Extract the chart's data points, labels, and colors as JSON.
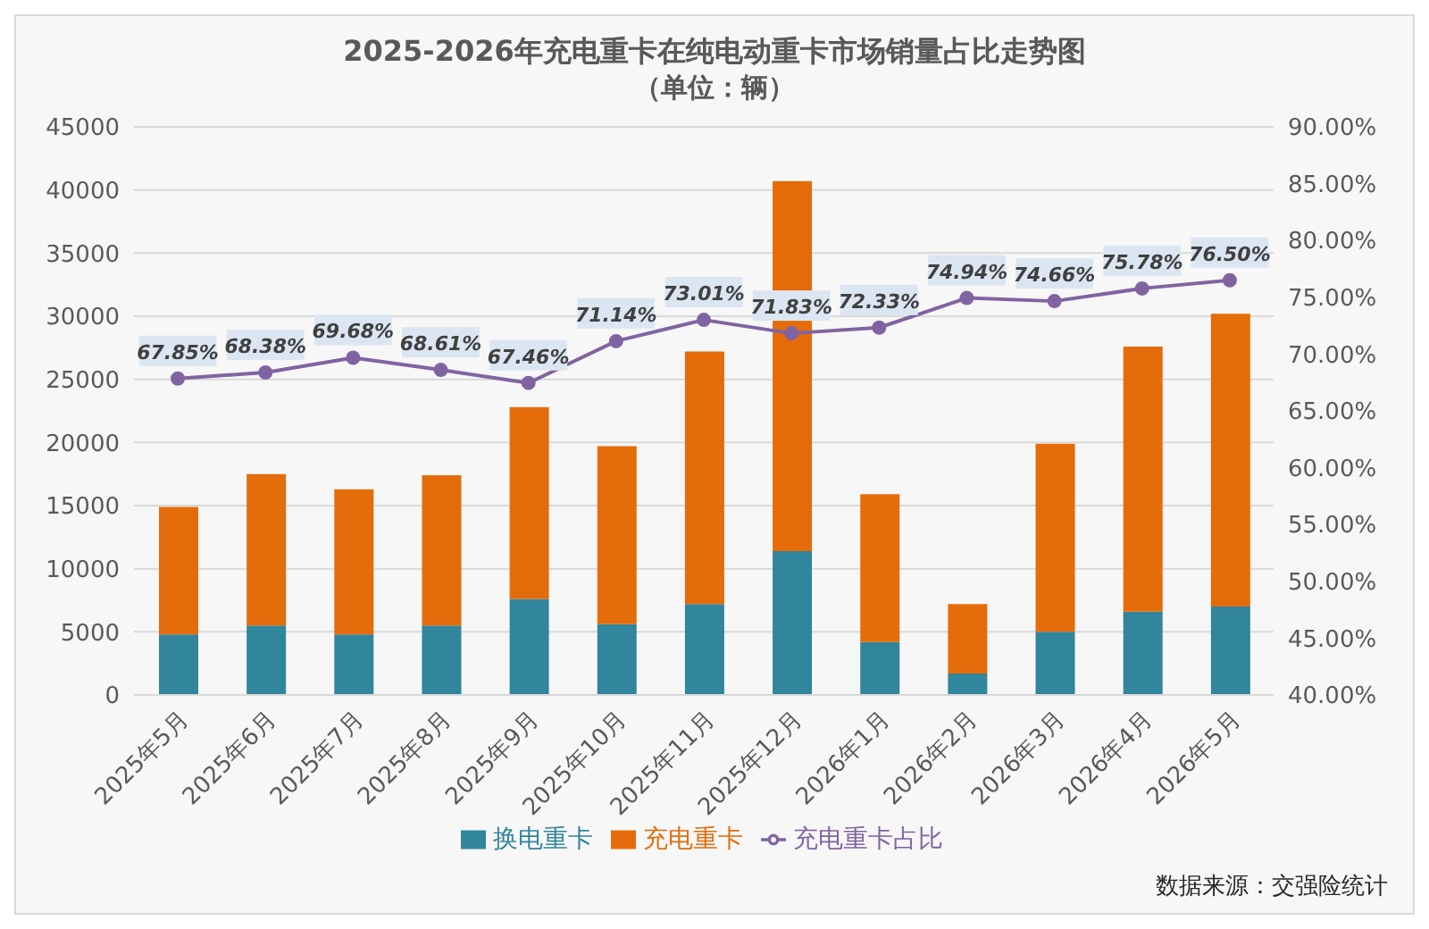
{
  "chart_data": {
    "type": "bar",
    "title": "2025-2026年充电重卡在纯电动重卡市场销量占比走势图",
    "subtitle": "（单位：辆）",
    "categories": [
      "2025年5月",
      "2025年6月",
      "2025年7月",
      "2025年8月",
      "2025年9月",
      "2025年10月",
      "2025年11月",
      "2025年12月",
      "2026年1月",
      "2026年2月",
      "2026年3月",
      "2026年4月",
      "2026年5月"
    ],
    "stacked": true,
    "series": [
      {
        "name": "换电重卡",
        "color": "#31859c",
        "values": [
          4800,
          5500,
          4800,
          5500,
          7600,
          5600,
          7200,
          11400,
          4200,
          1700,
          5000,
          6600,
          7000
        ]
      },
      {
        "name": "充电重卡",
        "color": "#e46c0a",
        "values": [
          10100,
          12000,
          11500,
          11900,
          15200,
          14100,
          20000,
          29300,
          11700,
          5500,
          14900,
          21000,
          23200
        ]
      },
      {
        "name": "充电重卡占比",
        "type": "line",
        "axis": "y2",
        "color": "#8064a2",
        "values": [
          67.85,
          68.38,
          69.68,
          68.61,
          67.46,
          71.14,
          73.01,
          71.83,
          72.33,
          74.94,
          74.66,
          75.78,
          76.5
        ],
        "value_labels": [
          "67.85%",
          "68.38%",
          "69.68%",
          "68.61%",
          "67.46%",
          "71.14%",
          "73.01%",
          "71.83%",
          "72.33%",
          "74.94%",
          "74.66%",
          "75.78%",
          "76.50%"
        ]
      }
    ],
    "ylim": [
      0,
      45000
    ],
    "yticks": [
      0,
      5000,
      10000,
      15000,
      20000,
      25000,
      30000,
      35000,
      40000,
      45000
    ],
    "y2lim": [
      40,
      90
    ],
    "y2ticks": [
      {
        "value": 40,
        "label": "40.00%"
      },
      {
        "value": 45,
        "label": "45.00%"
      },
      {
        "value": 50,
        "label": "50.00%"
      },
      {
        "value": 55,
        "label": "55.00%"
      },
      {
        "value": 60,
        "label": "60.00%"
      },
      {
        "value": 65,
        "label": "65.00%"
      },
      {
        "value": 70,
        "label": "70.00%"
      },
      {
        "value": 75,
        "label": "75.00%"
      },
      {
        "value": 80,
        "label": "80.00%"
      },
      {
        "value": 85,
        "label": "85.00%"
      },
      {
        "value": 90,
        "label": "90.00%"
      }
    ],
    "grid": "y",
    "legend": "bottom",
    "marker": "circle",
    "line_style": "solid",
    "annotations": [
      "数据来源：交强险统计"
    ]
  }
}
